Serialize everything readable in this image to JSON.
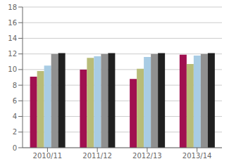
{
  "chart_data": {
    "type": "bar",
    "categories": [
      "2010/11",
      "2011/12",
      "2012/13",
      "2013/14"
    ],
    "series": [
      {
        "color": "#A01050",
        "values": [
          9.1,
          10.0,
          8.8,
          11.9
        ]
      },
      {
        "color": "#B8BC78",
        "values": [
          9.8,
          11.5,
          10.1,
          10.7
        ]
      },
      {
        "color": "#A8CCE4",
        "values": [
          10.5,
          11.7,
          11.6,
          11.8
        ]
      },
      {
        "color": "#909090",
        "values": [
          12.0,
          12.0,
          12.0,
          12.0
        ]
      },
      {
        "color": "#202020",
        "values": [
          12.1,
          12.1,
          12.1,
          12.1
        ]
      }
    ],
    "ylim": [
      0,
      18
    ],
    "yticks": [
      0,
      2,
      4,
      6,
      8,
      10,
      12,
      14,
      16,
      18
    ],
    "grid": true
  }
}
